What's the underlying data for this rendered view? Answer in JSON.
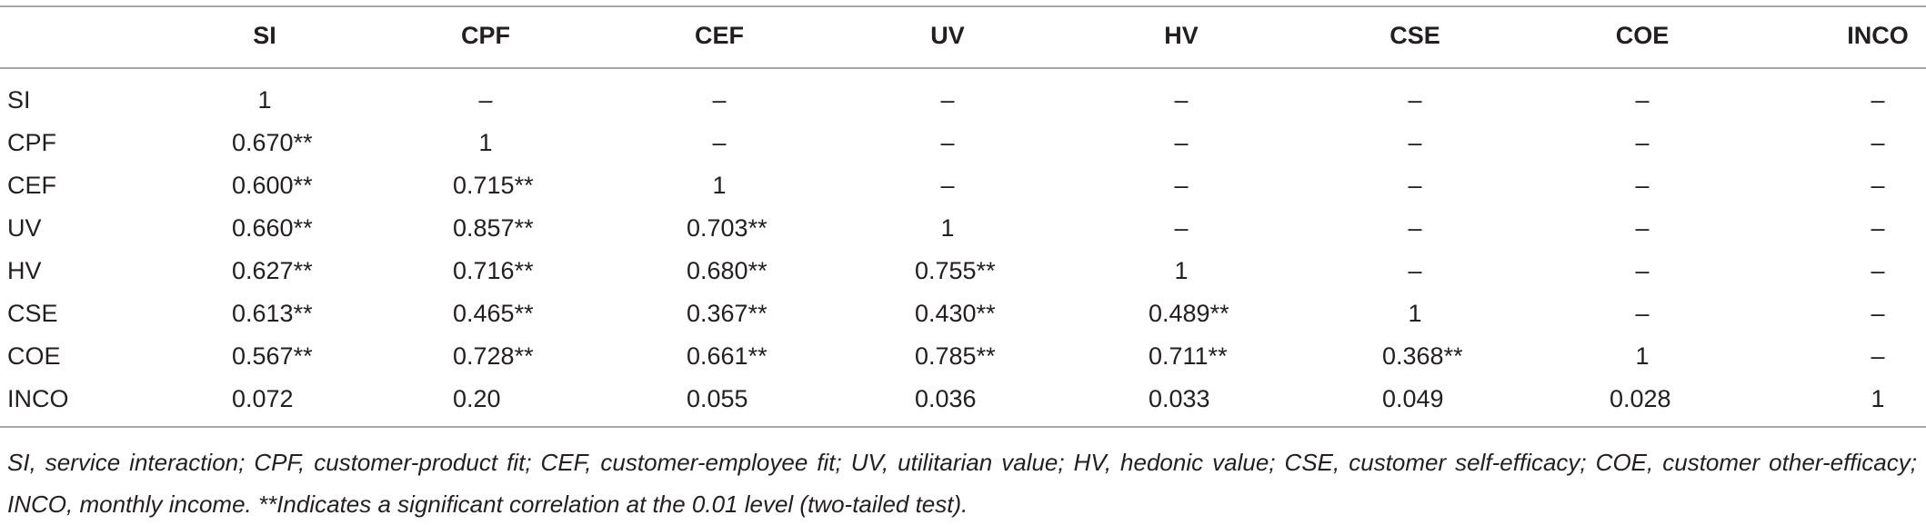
{
  "table": {
    "header": [
      "",
      "SI",
      "CPF",
      "CEF",
      "UV",
      "HV",
      "CSE",
      "COE",
      "INCO"
    ],
    "rows": [
      [
        "SI",
        "1",
        "–",
        "–",
        "–",
        "–",
        "–",
        "–",
        "–"
      ],
      [
        "CPF",
        "0.670**",
        "1",
        "–",
        "–",
        "–",
        "–",
        "–",
        "–"
      ],
      [
        "CEF",
        "0.600**",
        "0.715**",
        "1",
        "–",
        "–",
        "–",
        "–",
        "–"
      ],
      [
        "UV",
        "0.660**",
        "0.857**",
        "0.703**",
        "1",
        "–",
        "–",
        "–",
        "–"
      ],
      [
        "HV",
        "0.627**",
        "0.716**",
        "0.680**",
        "0.755**",
        "1",
        "–",
        "–",
        "–"
      ],
      [
        "CSE",
        "0.613**",
        "0.465**",
        "0.367**",
        "0.430**",
        "0.489**",
        "1",
        "–",
        "–"
      ],
      [
        "COE",
        "0.567**",
        "0.728**",
        "0.661**",
        "0.785**",
        "0.711**",
        "0.368**",
        "1",
        "–"
      ],
      [
        "INCO",
        "0.072",
        "0.20",
        "0.055",
        "0.036",
        "0.033",
        "0.049",
        "0.028",
        "1"
      ]
    ],
    "footnote": "SI, service interaction; CPF, customer-product fit; CEF, customer-employee fit; UV, utilitarian value; HV, hedonic value; CSE, customer self-efficacy; COE, customer other-efficacy; INCO, monthly income. **Indicates a significant correlation at the 0.01 level (two-tailed test)."
  }
}
